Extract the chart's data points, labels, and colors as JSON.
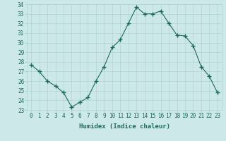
{
  "x": [
    0,
    1,
    2,
    3,
    4,
    5,
    6,
    7,
    8,
    9,
    10,
    11,
    12,
    13,
    14,
    15,
    16,
    17,
    18,
    19,
    20,
    21,
    22,
    23
  ],
  "y": [
    27.7,
    27.0,
    26.0,
    25.5,
    24.8,
    23.3,
    23.8,
    24.3,
    26.0,
    27.5,
    29.5,
    30.3,
    32.0,
    33.7,
    33.0,
    33.0,
    33.3,
    32.0,
    30.8,
    30.7,
    29.7,
    27.5,
    26.5,
    24.8
  ],
  "xlabel": "Humidex (Indice chaleur)",
  "ylim": [
    23,
    34
  ],
  "xlim_min": -0.5,
  "xlim_max": 23.5,
  "yticks": [
    23,
    24,
    25,
    26,
    27,
    28,
    29,
    30,
    31,
    32,
    33,
    34
  ],
  "xticks": [
    0,
    1,
    2,
    3,
    4,
    5,
    6,
    7,
    8,
    9,
    10,
    11,
    12,
    13,
    14,
    15,
    16,
    17,
    18,
    19,
    20,
    21,
    22,
    23
  ],
  "line_color": "#1a6b5a",
  "marker_color": "#1a6b5a",
  "bg_color": "#cce8e8",
  "grid_color": "#b0d4d4",
  "tick_label_fontsize": 5.5,
  "xlabel_fontsize": 6.5
}
